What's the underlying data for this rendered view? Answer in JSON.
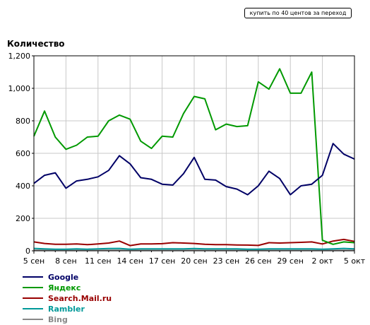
{
  "header": {
    "buy_button_label": "купить по 40 центов за переход"
  },
  "chart_data": {
    "type": "line",
    "ylabel": "Количество",
    "ylim": [
      0,
      1200
    ],
    "yticks": [
      0,
      200,
      400,
      600,
      800,
      1000,
      1200
    ],
    "ytick_labels": [
      "0",
      "200",
      "400",
      "600",
      "800",
      "1,000",
      "1,200"
    ],
    "xtick_labels": [
      "5 сен",
      "8 сен",
      "11 сен",
      "14 сен",
      "17 сен",
      "20 сен",
      "23 сен",
      "26 сен",
      "29 сен",
      "2 окт",
      "5 окт"
    ],
    "x": [
      "5 сен",
      "6 сен",
      "7 сен",
      "8 сен",
      "9 сен",
      "10 сен",
      "11 сен",
      "12 сен",
      "13 сен",
      "14 сен",
      "15 сен",
      "16 сен",
      "17 сен",
      "18 сен",
      "19 сен",
      "20 сен",
      "21 сен",
      "22 сен",
      "23 сен",
      "24 сен",
      "25 сен",
      "26 сен",
      "27 сен",
      "28 сен",
      "29 сен",
      "30 сен",
      "1 окт",
      "2 окт",
      "3 окт",
      "4 окт",
      "5 окт"
    ],
    "grid": true,
    "legend_position": "bottom-left",
    "series": [
      {
        "name": "Google",
        "color": "#000066",
        "values": [
          415,
          465,
          480,
          385,
          430,
          440,
          455,
          495,
          585,
          535,
          450,
          440,
          410,
          405,
          475,
          575,
          440,
          435,
          395,
          380,
          345,
          400,
          490,
          445,
          345,
          400,
          410,
          465,
          660,
          595,
          565
        ]
      },
      {
        "name": "Яндекс",
        "color": "#009900",
        "values": [
          705,
          860,
          700,
          625,
          650,
          700,
          705,
          800,
          835,
          810,
          675,
          630,
          705,
          700,
          845,
          950,
          935,
          745,
          780,
          765,
          770,
          1040,
          995,
          1120,
          970,
          970,
          1100,
          65,
          40,
          55,
          50
        ]
      },
      {
        "name": "Search.Mail.ru",
        "color": "#990000",
        "values": [
          55,
          45,
          40,
          40,
          42,
          38,
          42,
          48,
          60,
          32,
          42,
          42,
          44,
          50,
          48,
          45,
          40,
          38,
          38,
          36,
          35,
          33,
          50,
          48,
          50,
          52,
          55,
          42,
          60,
          70,
          58
        ]
      },
      {
        "name": "Rambler",
        "color": "#009999",
        "values": [
          15,
          12,
          10,
          10,
          12,
          10,
          12,
          14,
          15,
          10,
          12,
          12,
          12,
          12,
          12,
          14,
          12,
          12,
          12,
          12,
          10,
          10,
          12,
          12,
          12,
          12,
          12,
          10,
          12,
          15,
          12
        ]
      },
      {
        "name": "Bing",
        "color": "#888888",
        "values": [
          4,
          4,
          3,
          3,
          3,
          3,
          3,
          4,
          4,
          3,
          3,
          3,
          3,
          3,
          3,
          4,
          3,
          3,
          3,
          3,
          3,
          3,
          3,
          3,
          3,
          3,
          3,
          3,
          3,
          4,
          3
        ]
      }
    ]
  }
}
